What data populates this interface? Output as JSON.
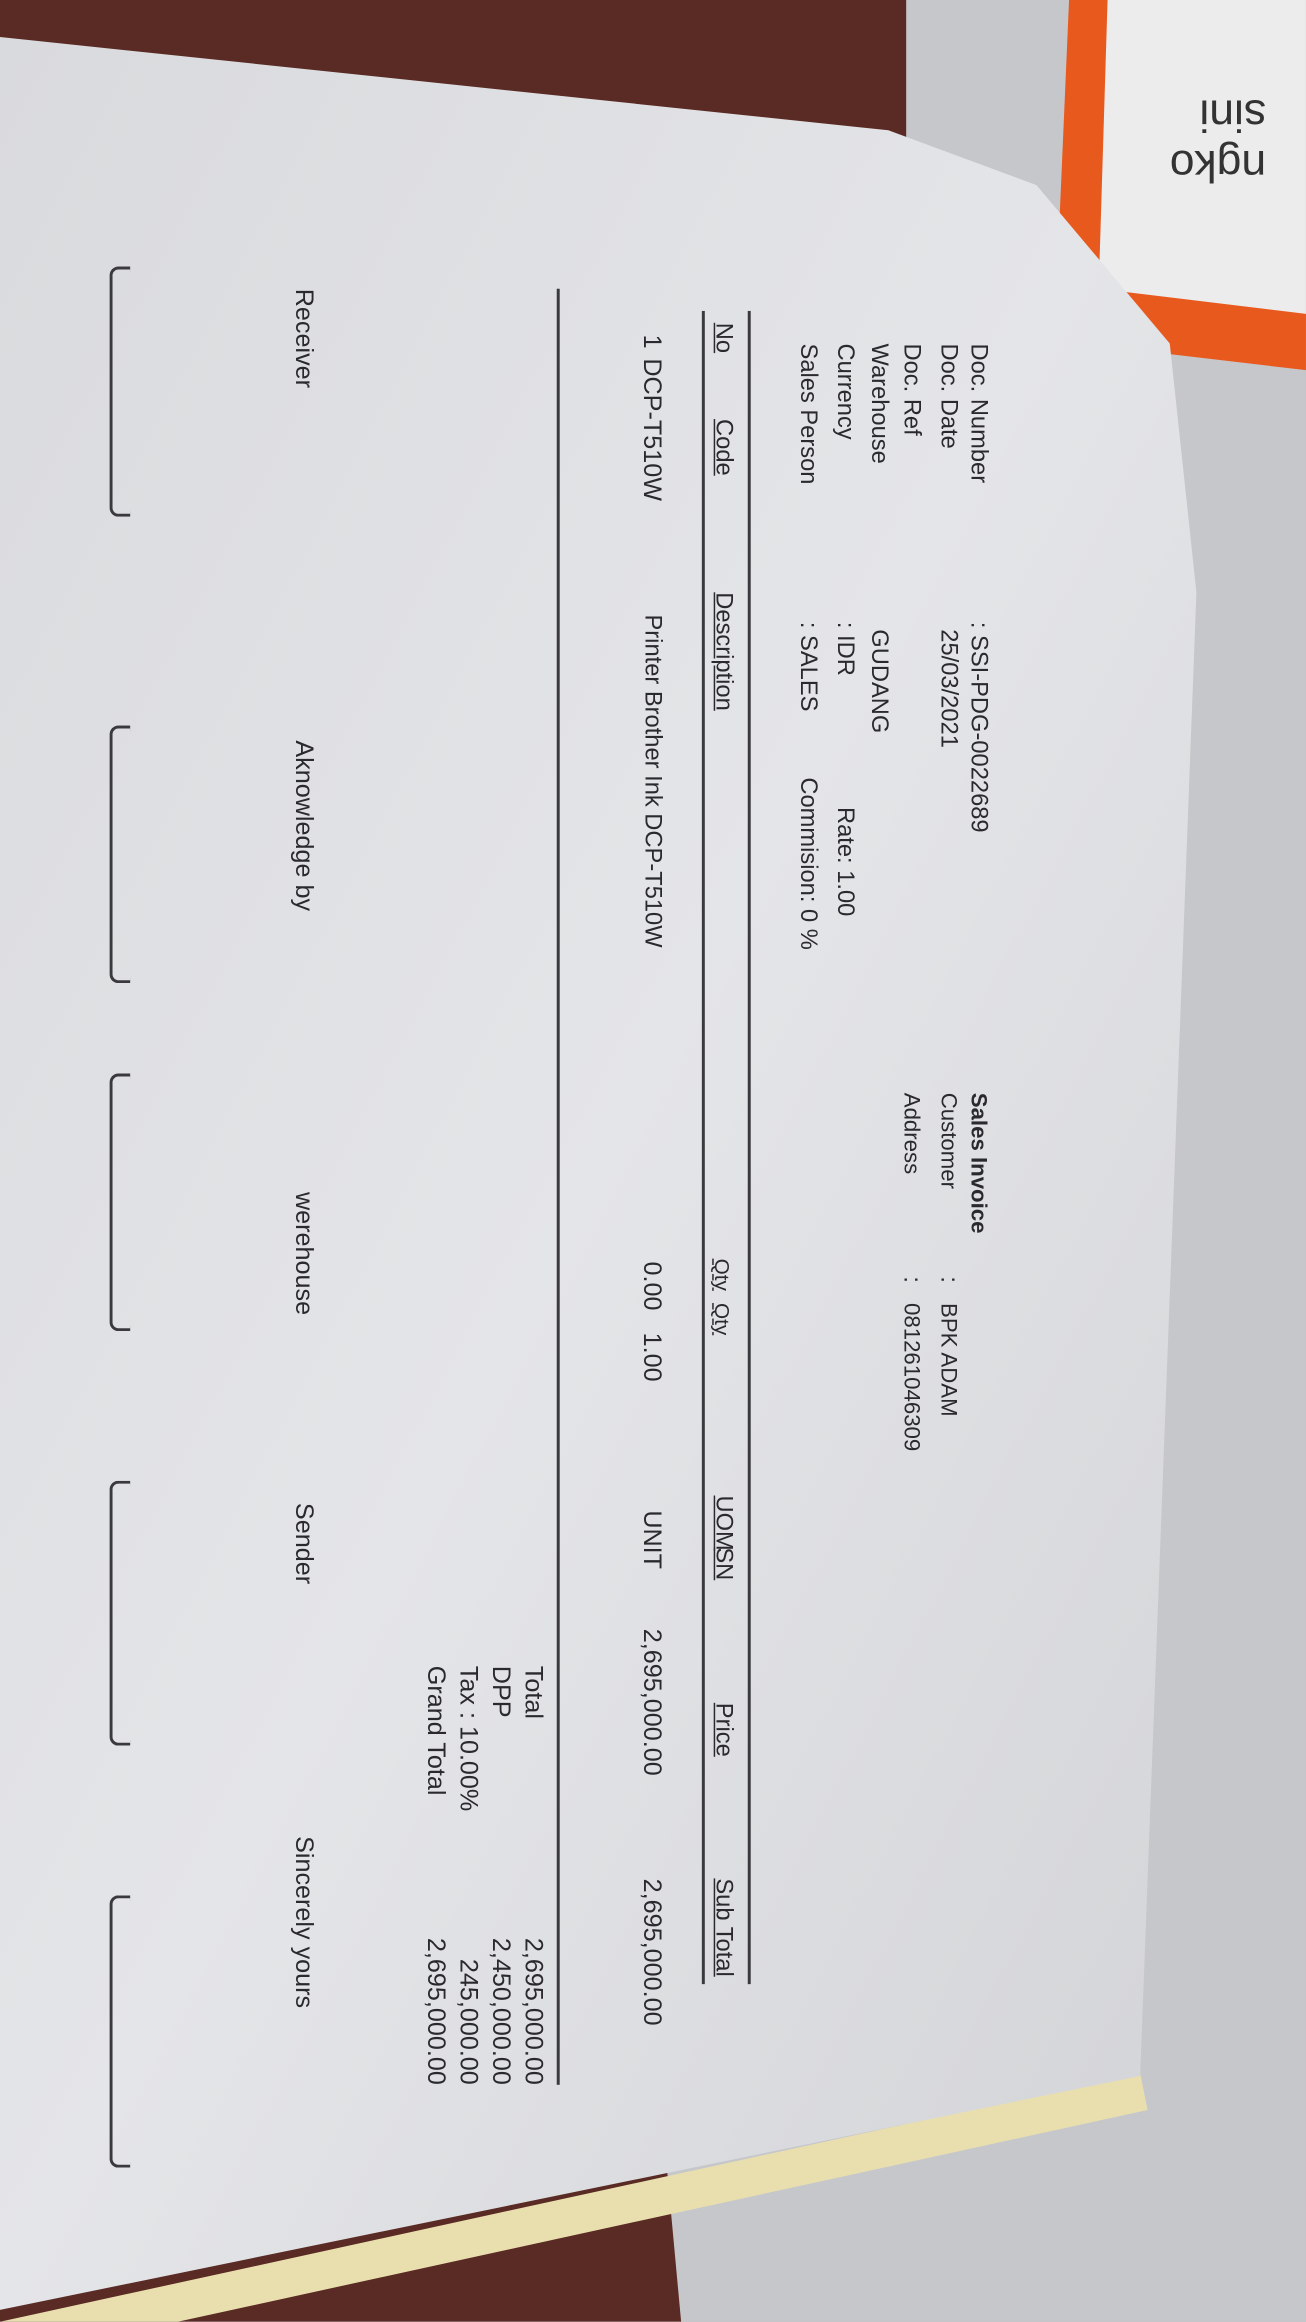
{
  "background_note_card": {
    "line1": "ngko",
    "line2": "sini",
    "color": "#e8591e"
  },
  "header": {
    "labels": [
      "Doc. Number",
      "Doc. Date",
      "Doc. Ref",
      "Warehouse",
      "Currency",
      "Sales Person"
    ],
    "doc_number": ": SSI-PDG-0022689",
    "doc_date": "25/03/2021",
    "warehouse": "GUDANG",
    "currency": ": IDR",
    "rate": "Rate: 1.00",
    "sales_person": ": SALES",
    "commission": "Commision: 0 %",
    "title": "Sales Invoice",
    "customer_label": "Customer",
    "address_label": "Address",
    "colon": ":",
    "customer": "BPK ADAM",
    "address": "081261046309"
  },
  "table": {
    "columns": [
      "No",
      "Code",
      "Description",
      "Qty",
      "Qty",
      "UOM",
      "SN",
      "Price",
      "Sub Total"
    ],
    "rows": [
      {
        "no": "1",
        "code": "DCP-T510W",
        "description": "Printer Brother Ink DCP-T510W",
        "qty1": "0.00",
        "qty2": "1.00",
        "uom": "UNIT",
        "sn": "",
        "price": "2,695,000.00",
        "subtotal": "2,695,000.00"
      }
    ]
  },
  "totals": [
    {
      "label": "Total",
      "value": "2,695,000.00"
    },
    {
      "label": "DPP",
      "value": "2,450,000.00"
    },
    {
      "label": "Tax : 10.00%",
      "value": "245,000.00"
    },
    {
      "label": "Grand Total",
      "value": "2,695,000.00"
    }
  ],
  "signatures": [
    "Receiver",
    "Aknowledge by",
    "werehouse",
    "Sender",
    "Sincerely yours"
  ]
}
